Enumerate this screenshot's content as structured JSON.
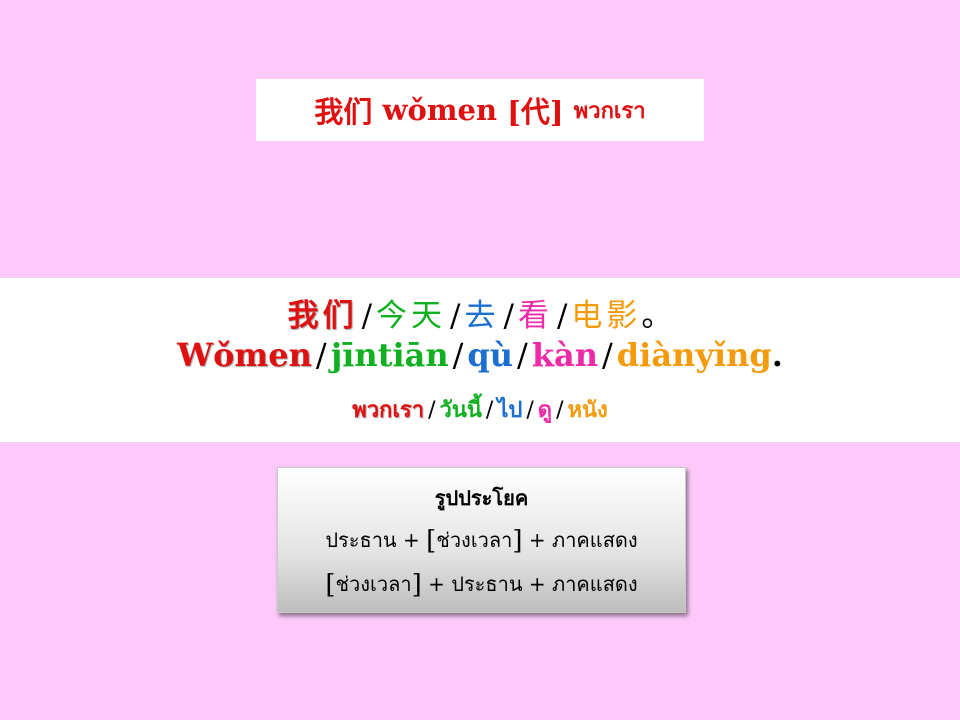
{
  "vocab": {
    "hanzi": "我们",
    "pinyin": "wǒmen",
    "pos": "[代]",
    "thai": "พวกเรา"
  },
  "sentence": {
    "separator": "/",
    "hanzi": [
      "我们",
      "今天",
      "去",
      "看",
      "电影"
    ],
    "hanzi_end": "。",
    "pinyin": [
      "Wǒmen",
      "jīntiān",
      "qù",
      "kàn",
      "diànyǐng"
    ],
    "pinyin_end": ".",
    "thai": [
      "พวกเรา",
      "วันนี้",
      "ไป",
      "ดู",
      "หนัง"
    ],
    "colors": [
      "#e01010",
      "#10b020",
      "#1a6fd0",
      "#f02aa6",
      "#f59a0a"
    ]
  },
  "pattern": {
    "title": "รูปประโยค",
    "row1": {
      "subject": "ประธาน",
      "plus1": "+",
      "open": "[",
      "time": "ช่วงเวลา",
      "close": "]",
      "plus2": "+",
      "predicate": "ภาคแสดง"
    },
    "row2": {
      "open": "[",
      "time": "ช่วงเวลา",
      "close": "]",
      "plus1": "+",
      "subject": "ประธาน",
      "plus2": "+",
      "predicate": "ภาคแสดง"
    }
  },
  "background_color": "#fdc9fb"
}
